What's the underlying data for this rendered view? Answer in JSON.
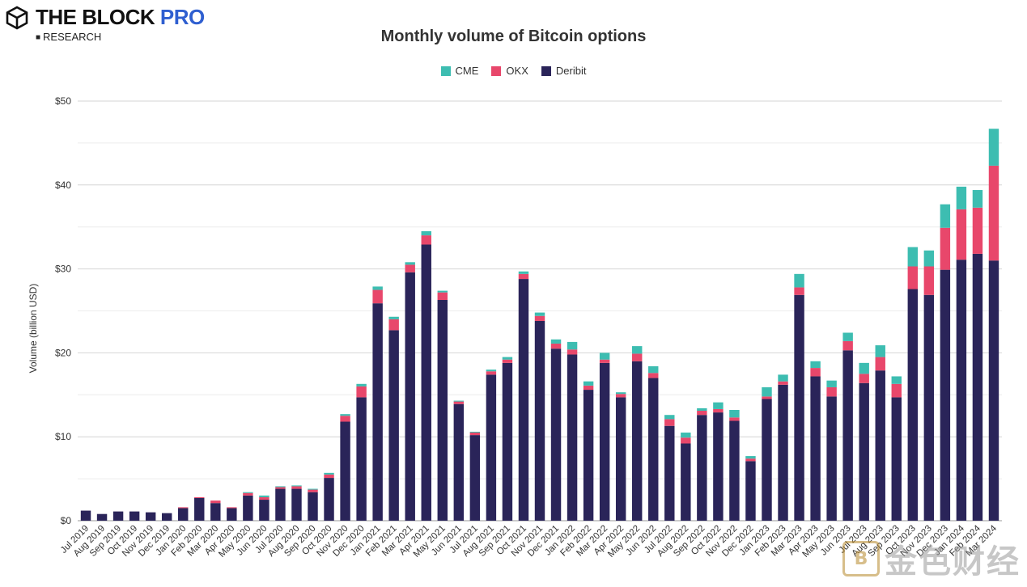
{
  "brand": {
    "name": "THE BLOCK",
    "pro": "PRO",
    "sub": "RESEARCH",
    "icon": "cube-icon",
    "color_pro": "#2f5fd0"
  },
  "watermark": {
    "text": "金色财经",
    "icon": "coin-icon",
    "icon_glyph": "B"
  },
  "chart_data": {
    "type": "bar",
    "stacked": true,
    "title": "Monthly volume of Bitcoin options",
    "ylabel": "Volume (billion USD)",
    "xlabel": "",
    "ylim": [
      0,
      50
    ],
    "yticks": [
      0,
      10,
      20,
      30,
      40,
      50
    ],
    "ytick_labels": [
      "$0",
      "$10",
      "$20",
      "$30",
      "$40",
      "$50"
    ],
    "grid": true,
    "legend_position": "top-center",
    "categories": [
      "Jul 2019",
      "Aug 2019",
      "Sep 2019",
      "Oct 2019",
      "Nov 2019",
      "Dec 2019",
      "Jan 2020",
      "Feb 2020",
      "Mar 2020",
      "Apr 2020",
      "May 2020",
      "Jun 2020",
      "Jul 2020",
      "Aug 2020",
      "Sep 2020",
      "Oct 2020",
      "Nov 2020",
      "Dec 2020",
      "Jan 2021",
      "Feb 2021",
      "Mar 2021",
      "Apr 2021",
      "May 2021",
      "Jun 2021",
      "Jul 2021",
      "Aug 2021",
      "Sep 2021",
      "Oct 2021",
      "Nov 2021",
      "Dec 2021",
      "Jan 2022",
      "Feb 2022",
      "Mar 2022",
      "Apr 2022",
      "May 2022",
      "Jun 2022",
      "Jul 2022",
      "Aug 2022",
      "Sep 2022",
      "Oct 2022",
      "Nov 2022",
      "Dec 2022",
      "Jan 2023",
      "Feb 2023",
      "Mar 2023",
      "Apr 2023",
      "May 2023",
      "Jun 2023",
      "Jul 2023",
      "Aug 2023",
      "Sep 2023",
      "Oct 2023",
      "Nov 2023",
      "Dec 2023",
      "Jan 2024",
      "Feb 2024",
      "Mar 2024"
    ],
    "series": [
      {
        "name": "Deribit",
        "color": "#2a2459",
        "values": [
          1.2,
          0.8,
          1.1,
          1.1,
          1.0,
          0.9,
          1.5,
          2.7,
          2.1,
          1.5,
          3.0,
          2.5,
          3.8,
          3.8,
          3.4,
          5.1,
          11.8,
          14.7,
          25.9,
          22.7,
          29.6,
          32.9,
          26.3,
          13.9,
          10.2,
          17.4,
          18.8,
          28.8,
          23.8,
          20.5,
          19.8,
          15.6,
          18.8,
          14.7,
          19.0,
          17.0,
          11.3,
          9.2,
          12.6,
          12.9,
          11.9,
          7.1,
          14.5,
          16.2,
          26.9,
          17.2,
          14.8,
          20.3,
          16.4,
          17.9,
          14.7,
          27.6,
          26.9,
          29.9,
          31.1,
          31.8,
          31.0
        ]
      },
      {
        "name": "OKX",
        "color": "#e8476b",
        "values": [
          0,
          0,
          0,
          0,
          0,
          0,
          0.1,
          0.1,
          0.3,
          0.1,
          0.3,
          0.3,
          0.2,
          0.3,
          0.3,
          0.4,
          0.7,
          1.3,
          1.6,
          1.3,
          0.9,
          1.1,
          0.9,
          0.3,
          0.3,
          0.4,
          0.4,
          0.6,
          0.6,
          0.6,
          0.6,
          0.5,
          0.4,
          0.4,
          0.9,
          0.6,
          0.8,
          0.7,
          0.5,
          0.4,
          0.4,
          0.3,
          0.3,
          0.4,
          0.9,
          1.0,
          1.1,
          1.1,
          1.1,
          1.6,
          1.6,
          2.7,
          3.4,
          5.0,
          6.0,
          5.5,
          11.3
        ]
      },
      {
        "name": "CME",
        "color": "#3dbdb1",
        "values": [
          0,
          0,
          0,
          0,
          0,
          0,
          0,
          0,
          0,
          0,
          0.1,
          0.2,
          0.1,
          0.1,
          0.1,
          0.2,
          0.2,
          0.3,
          0.4,
          0.3,
          0.3,
          0.5,
          0.2,
          0.1,
          0.1,
          0.2,
          0.3,
          0.3,
          0.4,
          0.5,
          0.9,
          0.5,
          0.8,
          0.2,
          0.9,
          0.8,
          0.5,
          0.6,
          0.3,
          0.8,
          0.9,
          0.3,
          1.1,
          0.8,
          1.6,
          0.8,
          0.8,
          1.0,
          1.3,
          1.4,
          0.9,
          2.3,
          1.9,
          2.8,
          2.7,
          2.1,
          4.4
        ]
      }
    ]
  }
}
